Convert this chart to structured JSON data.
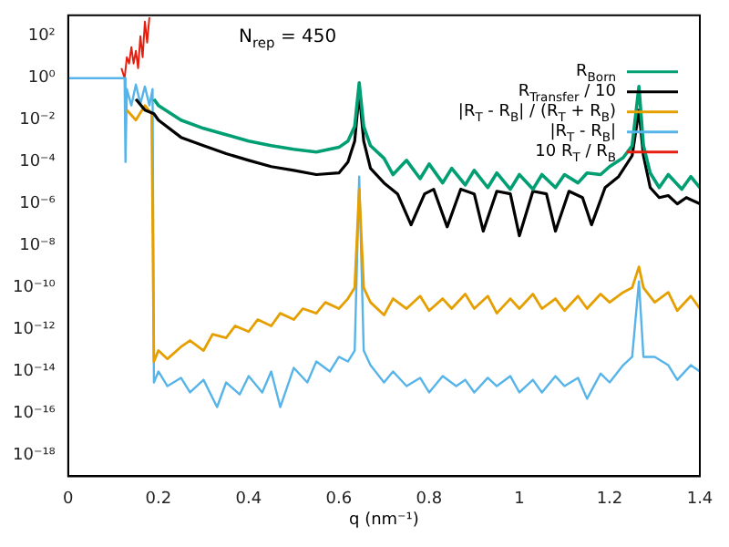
{
  "chart_data": {
    "type": "line",
    "xlabel": "q (nm⁻¹)",
    "annotations": [
      "N$_{rep}$ = 450"
    ],
    "log": "y",
    "grid": false,
    "legend": "top right",
    "marker": "none",
    "line_style": "solid",
    "xlim": [
      0,
      1.4
    ],
    "xticks": [
      0,
      0.2,
      0.4,
      0.6,
      0.8,
      1,
      1.2,
      1.4
    ],
    "ylim": [
      1e-19,
      1000
    ],
    "yticks": [
      {
        "value": 100,
        "label": "10²"
      },
      {
        "value": 1,
        "label": "10⁰"
      },
      {
        "value": 0.01,
        "label": "10⁻²"
      },
      {
        "value": 0.0001,
        "label": "10⁻⁴"
      },
      {
        "value": 1e-06,
        "label": "10⁻⁶"
      },
      {
        "value": 1e-08,
        "label": "10⁻⁸"
      },
      {
        "value": 1e-10,
        "label": "10⁻¹⁰"
      },
      {
        "value": 1e-12,
        "label": "10⁻¹²"
      },
      {
        "value": 1e-14,
        "label": "10⁻¹⁴"
      },
      {
        "value": 1e-16,
        "label": "10⁻¹⁶"
      },
      {
        "value": 1e-18,
        "label": "10⁻¹⁸"
      }
    ],
    "series": [
      {
        "name": "R$_{Born}$",
        "color": "#009e73",
        "x": [
          0.19,
          0.2,
          0.25,
          0.3,
          0.35,
          0.4,
          0.45,
          0.5,
          0.55,
          0.6,
          0.62,
          0.635,
          0.645,
          0.655,
          0.67,
          0.7,
          0.72,
          0.75,
          0.78,
          0.8,
          0.83,
          0.85,
          0.88,
          0.9,
          0.93,
          0.95,
          0.98,
          1.0,
          1.03,
          1.05,
          1.08,
          1.1,
          1.13,
          1.15,
          1.18,
          1.2,
          1.23,
          1.25,
          1.265,
          1.275,
          1.29,
          1.31,
          1.33,
          1.36,
          1.38,
          1.4
        ],
        "values": [
          0.1,
          0.05,
          0.01,
          0.004,
          0.002,
          0.001,
          0.0006,
          0.0004,
          0.0003,
          0.0005,
          0.001,
          0.005,
          0.6,
          0.005,
          0.0006,
          0.00015,
          2.5e-05,
          0.00012,
          1.6e-05,
          8e-05,
          1e-05,
          5e-05,
          8e-06,
          4e-05,
          6e-06,
          3e-05,
          5e-06,
          2.5e-05,
          5e-06,
          2.5e-05,
          6e-06,
          2.5e-05,
          1e-05,
          3e-05,
          2.5e-05,
          6e-05,
          0.00016,
          0.0006,
          0.4,
          0.0006,
          3e-05,
          6e-06,
          2.5e-05,
          5e-06,
          2e-05,
          6e-06
        ]
      },
      {
        "name": "R$_{Transfer}$ / 10",
        "color": "#000000",
        "x": [
          0.15,
          0.17,
          0.19,
          0.2,
          0.25,
          0.3,
          0.35,
          0.4,
          0.45,
          0.5,
          0.55,
          0.6,
          0.62,
          0.635,
          0.645,
          0.655,
          0.67,
          0.7,
          0.73,
          0.76,
          0.79,
          0.81,
          0.84,
          0.87,
          0.9,
          0.92,
          0.95,
          0.98,
          1.0,
          1.03,
          1.06,
          1.08,
          1.11,
          1.14,
          1.16,
          1.19,
          1.22,
          1.25,
          1.265,
          1.275,
          1.29,
          1.31,
          1.33,
          1.35,
          1.37,
          1.4
        ],
        "values": [
          0.1,
          0.03,
          0.02,
          0.01,
          0.0015,
          0.0006,
          0.00025,
          0.00012,
          6e-05,
          4e-05,
          2.5e-05,
          3e-05,
          0.0001,
          0.001,
          0.2,
          0.001,
          5e-05,
          1e-05,
          3e-06,
          1e-07,
          3e-06,
          5e-06,
          8e-08,
          5e-06,
          3e-06,
          5e-08,
          4e-06,
          3e-06,
          3e-08,
          4e-06,
          3e-06,
          5e-08,
          4e-06,
          2e-06,
          1e-07,
          6e-06,
          2e-05,
          0.0002,
          0.03,
          0.0002,
          6e-06,
          2e-06,
          2.5e-06,
          1e-06,
          2e-06,
          1e-06
        ]
      },
      {
        "name": "|R$_{T}$ - R$_{B}$| / (R$_{T}$ + R$_{B}$)",
        "color": "#e69f00",
        "x": [
          0.13,
          0.15,
          0.17,
          0.185,
          0.19,
          0.2,
          0.22,
          0.25,
          0.27,
          0.3,
          0.32,
          0.35,
          0.37,
          0.4,
          0.42,
          0.45,
          0.47,
          0.5,
          0.52,
          0.55,
          0.57,
          0.6,
          0.62,
          0.635,
          0.645,
          0.655,
          0.67,
          0.7,
          0.72,
          0.75,
          0.78,
          0.8,
          0.83,
          0.85,
          0.88,
          0.9,
          0.93,
          0.95,
          0.98,
          1.0,
          1.03,
          1.05,
          1.08,
          1.1,
          1.13,
          1.15,
          1.18,
          1.2,
          1.23,
          1.25,
          1.265,
          1.275,
          1.3,
          1.33,
          1.35,
          1.38,
          1.4
        ],
        "values": [
          0.03,
          0.01,
          0.05,
          0.02,
          3e-14,
          1e-13,
          4e-14,
          1.5e-13,
          3e-13,
          1e-13,
          6e-13,
          4e-13,
          1.5e-12,
          8e-13,
          3e-12,
          1.5e-12,
          6e-12,
          3e-12,
          1e-11,
          6e-12,
          2e-11,
          1e-11,
          3e-11,
          1e-10,
          5e-06,
          1e-10,
          2e-11,
          5e-12,
          3e-11,
          1e-11,
          4e-11,
          8e-12,
          3e-11,
          1e-11,
          5e-11,
          1e-11,
          4e-11,
          6e-12,
          3e-11,
          1e-11,
          5e-11,
          1e-11,
          3e-11,
          8e-12,
          4e-11,
          1e-11,
          5e-11,
          2e-11,
          6e-11,
          1e-10,
          1e-09,
          1e-10,
          2e-11,
          6e-11,
          8e-12,
          4e-11,
          1e-11
        ]
      },
      {
        "name": "|R$_{T}$ - R$_{B}$|",
        "color": "#56b4e9",
        "x": [
          0,
          0.125,
          0.127,
          0.13,
          0.14,
          0.15,
          0.16,
          0.17,
          0.18,
          0.187,
          0.19,
          0.2,
          0.22,
          0.25,
          0.27,
          0.3,
          0.33,
          0.35,
          0.38,
          0.4,
          0.43,
          0.45,
          0.47,
          0.5,
          0.53,
          0.55,
          0.58,
          0.6,
          0.62,
          0.635,
          0.645,
          0.655,
          0.67,
          0.7,
          0.72,
          0.75,
          0.78,
          0.8,
          0.83,
          0.86,
          0.88,
          0.9,
          0.93,
          0.95,
          0.98,
          1.0,
          1.03,
          1.05,
          1.08,
          1.1,
          1.13,
          1.15,
          1.18,
          1.2,
          1.23,
          1.25,
          1.265,
          1.275,
          1.3,
          1.33,
          1.35,
          1.38,
          1.4
        ],
        "values": [
          1,
          1,
          0.0001,
          0.3,
          0.05,
          0.5,
          0.06,
          0.4,
          0.05,
          0.3,
          3e-15,
          1e-14,
          2e-15,
          5e-15,
          1e-15,
          4e-15,
          2e-16,
          3e-15,
          8e-16,
          6e-15,
          1e-15,
          1e-14,
          2e-16,
          1.5e-14,
          3e-15,
          3e-14,
          1e-14,
          5e-14,
          3e-14,
          1e-13,
          2e-05,
          1e-13,
          2e-14,
          3e-15,
          1e-14,
          2e-15,
          5e-15,
          1e-15,
          6e-15,
          2e-15,
          4e-15,
          1e-15,
          5e-15,
          2e-15,
          6e-15,
          1e-15,
          4e-15,
          1e-15,
          6e-15,
          2e-15,
          5e-15,
          5e-16,
          8e-15,
          3e-15,
          2e-14,
          5e-14,
          2e-10,
          5e-14,
          5e-14,
          2e-14,
          4e-15,
          2e-14,
          1e-14
        ]
      },
      {
        "name": "10 R$_{T}$ / R$_{B}$",
        "color": "#e51e10",
        "x": [
          0.118,
          0.125,
          0.13,
          0.135,
          0.14,
          0.145,
          0.15,
          0.155,
          0.16,
          0.165,
          0.17,
          0.175,
          0.18
        ],
        "values": [
          3,
          1,
          10,
          5,
          30,
          5,
          20,
          3,
          100,
          10,
          500,
          50,
          800
        ]
      }
    ]
  }
}
